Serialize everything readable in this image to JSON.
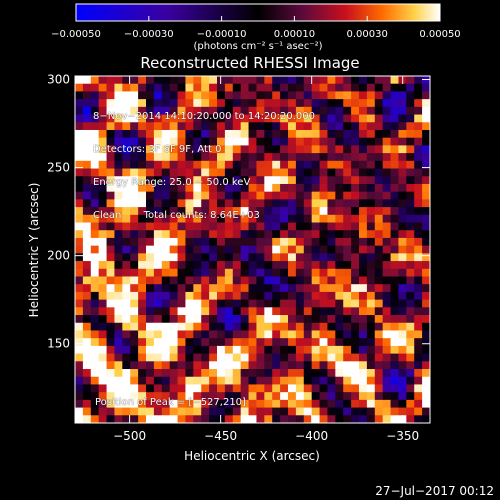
{
  "chart_data": {
    "type": "heatmap",
    "title": "Reconstructed RHESSI Image",
    "xlabel": "Heliocentric X (arcsec)",
    "ylabel": "Heliocentric Y (arcsec)",
    "xlim": [
      -530,
      -335
    ],
    "ylim": [
      105,
      302
    ],
    "x_ticks": [
      -500,
      -450,
      -400,
      -350
    ],
    "y_ticks": [
      150,
      200,
      250,
      300
    ],
    "x_tick_labels": [
      "−500",
      "−450",
      "−400",
      "−350"
    ],
    "y_tick_labels": [
      "150",
      "200",
      "250",
      "300"
    ],
    "colorbar": {
      "range": [
        -0.0005,
        0.0005
      ],
      "ticks": [
        -0.0005,
        -0.0003,
        -0.0001,
        0.0001,
        0.0003,
        0.0005
      ],
      "tick_labels": [
        "−0.00050",
        "−0.00030",
        "−0.00010",
        "0.00010",
        "0.00030",
        "0.00050"
      ],
      "units_label": "(photons cm⁻² s⁻¹ asec⁻²)",
      "colors": [
        "#0000ff",
        "#3a00a0",
        "#000000",
        "#5a0a3c",
        "#c8101e",
        "#ff6a00",
        "#ffd24a",
        "#ffffff"
      ]
    },
    "peak": [
      -527,
      210
    ]
  },
  "annotations": [
    "8−Nov−2014 14:10:20.000 to 14:20:20.000",
    "Detectors: 3F 6F 9F, Att 0",
    "Energy Range: 25.0 − 50.0 keV",
    "Clean       Total counts: 8.64E+03"
  ],
  "peak_label": "Position of Peak = [−527,210]",
  "footer_timestamp": "27−Jul−2017 00:12"
}
